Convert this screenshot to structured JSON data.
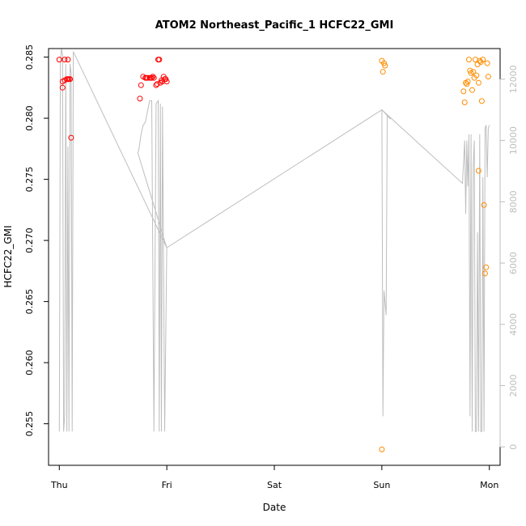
{
  "chart_data": {
    "type": "scatter",
    "title": "ATOM2 Northeast_Pacific_1 HCFC22_GMI",
    "xlabel": "Date",
    "ylabel": "HCFC22_GMI",
    "x_ticks": [
      "Thu",
      "Fri",
      "Sat",
      "Sun",
      "Mon"
    ],
    "y_ticks": [
      "0.255",
      "0.260",
      "0.265",
      "0.270",
      "0.275",
      "0.280",
      "0.285"
    ],
    "y2_ticks": [
      "0",
      "2000",
      "4000",
      "6000",
      "8000",
      "10000",
      "12000"
    ],
    "xlim_days": [
      -0.1,
      4.1
    ],
    "ylim": [
      0.2516,
      0.2857
    ],
    "y2lim": [
      -600,
      13000
    ],
    "colors": {
      "series_red": "#ff0000",
      "series_orange": "#ff8c00",
      "altitude": "#bebebe"
    },
    "series": [
      {
        "color_key": "series_red",
        "x": [
          0.0,
          0.05,
          0.08,
          0.03,
          0.05,
          0.07,
          0.08,
          0.09,
          0.1,
          0.03,
          0.11,
          0.75,
          0.76,
          0.78,
          0.8,
          0.81,
          0.82,
          0.84,
          0.85,
          0.86,
          0.87,
          0.88,
          0.9,
          0.91,
          0.92,
          0.93,
          0.94,
          0.95,
          0.96,
          0.97,
          0.98,
          0.99,
          1.0
        ],
        "y": [
          0.2848,
          0.2848,
          0.2848,
          0.283,
          0.2831,
          0.2832,
          0.2832,
          0.2832,
          0.2832,
          0.2825,
          0.2784,
          0.2816,
          0.2827,
          0.2834,
          0.2833,
          0.2833,
          0.2833,
          0.2833,
          0.2833,
          0.2833,
          0.2834,
          0.2833,
          0.2827,
          0.2828,
          0.2848,
          0.2848,
          0.2829,
          0.2831,
          0.283,
          0.2834,
          0.2832,
          0.2832,
          0.283
        ]
      },
      {
        "color_key": "series_orange",
        "x": [
          3.0,
          3.02,
          3.03,
          3.01,
          3.0,
          3.76,
          3.77,
          3.78,
          3.79,
          3.8,
          3.81,
          3.82,
          3.83,
          3.84,
          3.85,
          3.86,
          3.87,
          3.88,
          3.89,
          3.9,
          3.91,
          3.92,
          3.93,
          3.94,
          3.95,
          3.96,
          3.97,
          3.98,
          3.99,
          3.9
        ],
        "y": [
          0.2847,
          0.2845,
          0.2843,
          0.2838,
          0.2529,
          0.2822,
          0.2813,
          0.2829,
          0.2828,
          0.283,
          0.2848,
          0.2839,
          0.2837,
          0.2823,
          0.2838,
          0.2833,
          0.2848,
          0.2835,
          0.2844,
          0.2829,
          0.2847,
          0.2846,
          0.2814,
          0.2848,
          0.2729,
          0.2673,
          0.2678,
          0.2845,
          0.2834,
          0.2757
        ]
      }
    ],
    "altitude_line": {
      "x": [
        0.0,
        0.01,
        0.02,
        0.03,
        0.04,
        0.05,
        0.06,
        0.07,
        0.08,
        0.09,
        0.1,
        0.11,
        0.12,
        0.13,
        1.0,
        0.73,
        0.74,
        0.76,
        0.78,
        0.8,
        0.84,
        0.86,
        0.88,
        0.9,
        0.92,
        0.93,
        0.94,
        0.95,
        0.96,
        0.98,
        1.0,
        1.0,
        3.0,
        3.01,
        3.02,
        3.04,
        3.05,
        3.06,
        3.08,
        3.0,
        3.75,
        3.77,
        3.78,
        3.79,
        3.8,
        3.81,
        3.82,
        3.83,
        3.84,
        3.85,
        3.86,
        3.87,
        3.88,
        3.89,
        3.9,
        3.91,
        3.92,
        3.93,
        3.94,
        3.95,
        3.96,
        3.97,
        3.98,
        3.99,
        4.0
      ],
      "y": [
        500,
        12500,
        13000,
        12800,
        500,
        1000,
        12500,
        500,
        9800,
        500,
        12500,
        12200,
        500,
        12900,
        6500,
        9600,
        9700,
        10200,
        10500,
        10600,
        11300,
        11300,
        500,
        11200,
        11300,
        500,
        11200,
        500,
        11100,
        500,
        6500,
        6500,
        11000,
        1000,
        5100,
        4300,
        10800,
        10800,
        10700,
        11000,
        8600,
        10000,
        7600,
        10000,
        8500,
        10200,
        1000,
        10200,
        500,
        9200,
        10000,
        500,
        500,
        7000,
        500,
        10200,
        500,
        500,
        8800,
        500,
        10400,
        10500,
        8800,
        10400,
        10500
      ]
    }
  }
}
